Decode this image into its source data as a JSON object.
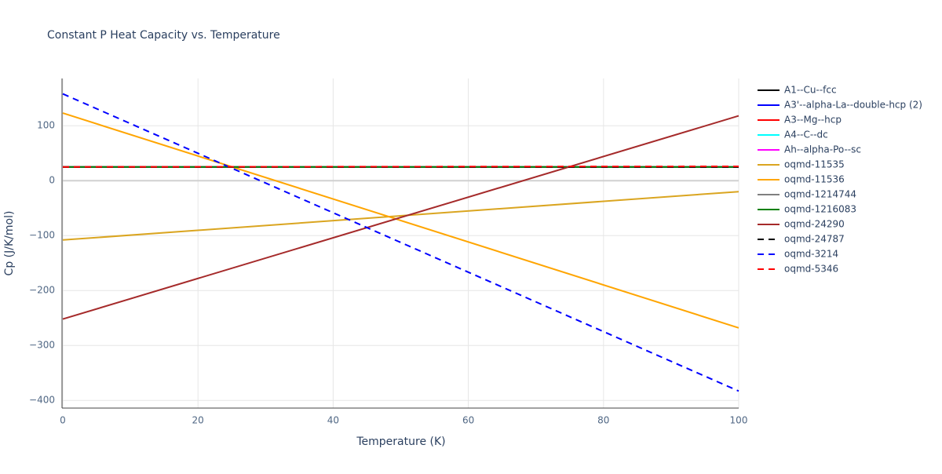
{
  "chart_data": {
    "type": "line",
    "title": "Constant P Heat Capacity vs. Temperature",
    "x_label": "Temperature (K)",
    "y_label": "Cp (J/K/mol)",
    "x": [
      0,
      100
    ],
    "xlim": [
      0,
      100
    ],
    "xticks": [
      0,
      20,
      40,
      60,
      80,
      100
    ],
    "ylim": [
      -414,
      186
    ],
    "yticks": [
      {
        "value": -400,
        "label": "−400"
      },
      {
        "value": -300,
        "label": "−300"
      },
      {
        "value": -200,
        "label": "−200"
      },
      {
        "value": -100,
        "label": "−100"
      },
      0,
      100
    ],
    "grid": true,
    "legend": "right",
    "series": [
      {
        "name": "A1--Cu--fcc",
        "color": "black",
        "values": [
          25,
          25
        ]
      },
      {
        "name": "A3'--alpha-La--double-hcp (2)",
        "color": "blue",
        "values": [
          25,
          25
        ]
      },
      {
        "name": "A3--Mg--hcp",
        "color": "red",
        "values": [
          25,
          25
        ]
      },
      {
        "name": "A4--C--dc",
        "color": "cyan",
        "values": [
          25,
          25
        ]
      },
      {
        "name": "Ah--alpha-Po--sc",
        "color": "magenta",
        "values": [
          25,
          25
        ]
      },
      {
        "name": "oqmd-11535",
        "color": "goldenrod",
        "values": [
          -108,
          -20
        ]
      },
      {
        "name": "oqmd-11536",
        "color": "orange",
        "values": [
          123,
          -268
        ]
      },
      {
        "name": "oqmd-1214744",
        "color": "grey",
        "values": [
          25,
          25
        ]
      },
      {
        "name": "oqmd-1216083",
        "color": "green",
        "values": [
          25,
          25
        ]
      },
      {
        "name": "oqmd-24290",
        "color": "brown",
        "values": [
          -252,
          118
        ]
      },
      {
        "name": "oqmd-24787",
        "color": "black",
        "dash": true,
        "values": [
          25,
          25
        ]
      },
      {
        "name": "oqmd-3214",
        "color": "blue",
        "dash": true,
        "values": [
          158,
          -383
        ]
      },
      {
        "name": "oqmd-5346",
        "color": "red",
        "dash": true,
        "values": [
          25,
          26
        ]
      }
    ]
  }
}
